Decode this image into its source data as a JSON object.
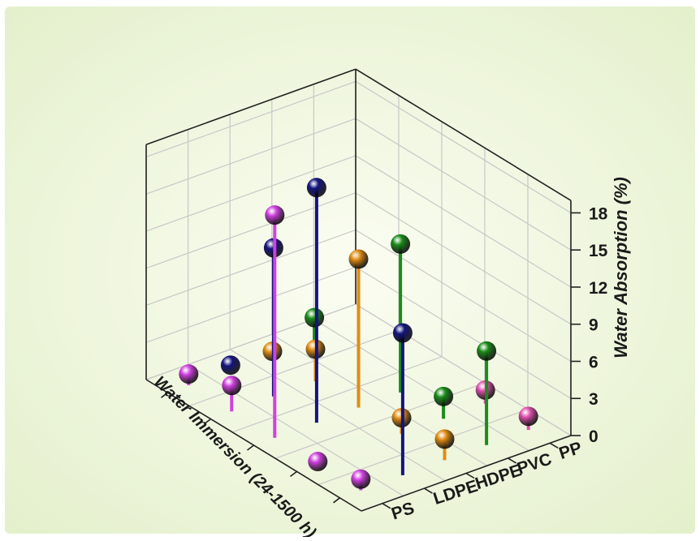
{
  "chart_data": {
    "type": "scatter",
    "subtype": "3d-stem",
    "title": "",
    "xlabel": "Water Immersion (24-1500 h)",
    "ylabel": "",
    "zlabel": "Water Absorption (%)",
    "categories": [
      "PS",
      "LDPE",
      "HDPE",
      "PVC",
      "PP"
    ],
    "z_ticks": [
      "0",
      "3",
      "6",
      "9",
      "12",
      "15",
      "18"
    ],
    "zlim": [
      0,
      19
    ],
    "grid": true,
    "colors": {
      "PS": "#d040e0",
      "LDPE": "#141480",
      "HDPE": "#e08c14",
      "PVC": "#1a8c1a",
      "PP": "#e050b0",
      "background": "#eef6dc"
    },
    "series": [
      {
        "category": "PS",
        "points": [
          {
            "immersion_step": 1,
            "value": 0.9
          },
          {
            "immersion_step": 2,
            "value": 2.1
          },
          {
            "immersion_step": 3,
            "value": 18.0
          },
          {
            "immersion_step": 4,
            "value": 0.2
          },
          {
            "immersion_step": 5,
            "value": 0.9
          }
        ]
      },
      {
        "category": "LDPE",
        "points": [
          {
            "immersion_step": 1,
            "value": 0.4
          },
          {
            "immersion_step": 2,
            "value": 12.0
          },
          {
            "immersion_step": 3,
            "value": 19.0
          },
          {
            "immersion_step": 5,
            "value": 11.5
          }
        ]
      },
      {
        "category": "HDPE",
        "points": [
          {
            "immersion_step": 1,
            "value": 0.3
          },
          {
            "immersion_step": 2,
            "value": 2.6
          },
          {
            "immersion_step": 3,
            "value": 12.0
          },
          {
            "immersion_step": 4,
            "value": 1.3
          },
          {
            "immersion_step": 5,
            "value": 1.7
          }
        ]
      },
      {
        "category": "PVC",
        "points": [
          {
            "immersion_step": 1,
            "value": 1.8
          },
          {
            "immersion_step": 3,
            "value": 12.0
          },
          {
            "immersion_step": 4,
            "value": 1.8
          },
          {
            "immersion_step": 5,
            "value": 7.6
          }
        ]
      },
      {
        "category": "PP",
        "points": [
          {
            "immersion_step": 4,
            "value": 1.1
          },
          {
            "immersion_step": 5,
            "value": 1.1
          }
        ]
      }
    ]
  }
}
